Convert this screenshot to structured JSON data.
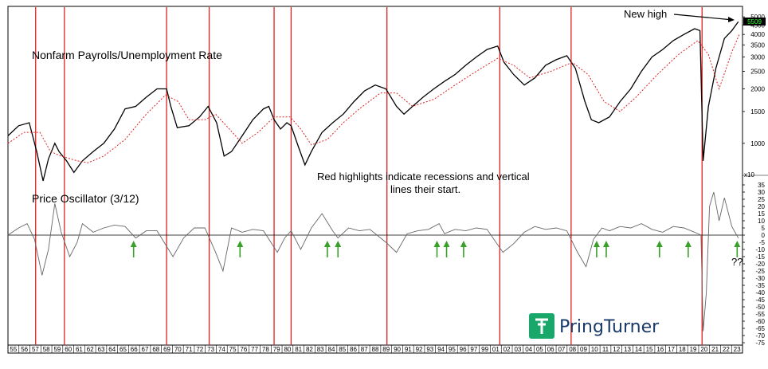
{
  "chart_data": [
    {
      "type": "line",
      "title": "Nonfarm Payrolls/Unemployment Rate",
      "yscale": "log",
      "ylim": [
        700,
        5600
      ],
      "yticks": [
        1000,
        1500,
        2000,
        2500,
        3000,
        3500,
        4000,
        4500,
        5000
      ],
      "current_value_label": "5509",
      "xlim": [
        1955,
        2024
      ],
      "annotation": "New high",
      "series": [
        {
          "color": "#000000",
          "style": "solid",
          "points": [
            [
              1955,
              1100
            ],
            [
              1956,
              1250
            ],
            [
              1957,
              1300
            ],
            [
              1957.7,
              900
            ],
            [
              1958.3,
              620
            ],
            [
              1958.8,
              820
            ],
            [
              1959.4,
              1000
            ],
            [
              1959.8,
              900
            ],
            [
              1960.5,
              800
            ],
            [
              1961.2,
              690
            ],
            [
              1962,
              800
            ],
            [
              1963,
              900
            ],
            [
              1964,
              1000
            ],
            [
              1965,
              1200
            ],
            [
              1966,
              1550
            ],
            [
              1967,
              1600
            ],
            [
              1968,
              1800
            ],
            [
              1969,
              2000
            ],
            [
              1969.9,
              2000
            ],
            [
              1970.3,
              1600
            ],
            [
              1970.9,
              1220
            ],
            [
              1972,
              1250
            ],
            [
              1973,
              1400
            ],
            [
              1973.8,
              1600
            ],
            [
              1974.6,
              1300
            ],
            [
              1975.3,
              850
            ],
            [
              1976,
              900
            ],
            [
              1977,
              1100
            ],
            [
              1978,
              1350
            ],
            [
              1979,
              1550
            ],
            [
              1979.5,
              1600
            ],
            [
              1980,
              1350
            ],
            [
              1980.6,
              1200
            ],
            [
              1981.2,
              1300
            ],
            [
              1981.6,
              1250
            ],
            [
              1982.3,
              950
            ],
            [
              1982.9,
              760
            ],
            [
              1983.5,
              900
            ],
            [
              1984.5,
              1150
            ],
            [
              1985.5,
              1300
            ],
            [
              1986.5,
              1450
            ],
            [
              1987.5,
              1700
            ],
            [
              1988.5,
              1950
            ],
            [
              1989.5,
              2100
            ],
            [
              1990.5,
              2000
            ],
            [
              1991.5,
              1600
            ],
            [
              1992.2,
              1450
            ],
            [
              1993,
              1600
            ],
            [
              1994,
              1800
            ],
            [
              1995,
              2000
            ],
            [
              1996,
              2200
            ],
            [
              1997,
              2400
            ],
            [
              1998,
              2700
            ],
            [
              1999,
              3000
            ],
            [
              2000,
              3300
            ],
            [
              2001,
              3450
            ],
            [
              2001.6,
              2800
            ],
            [
              2002.5,
              2400
            ],
            [
              2003.5,
              2100
            ],
            [
              2004.5,
              2300
            ],
            [
              2005.5,
              2700
            ],
            [
              2006.5,
              2900
            ],
            [
              2007.5,
              3050
            ],
            [
              2008.3,
              2600
            ],
            [
              2009.2,
              1700
            ],
            [
              2009.8,
              1350
            ],
            [
              2010.5,
              1300
            ],
            [
              2011.5,
              1400
            ],
            [
              2012.5,
              1700
            ],
            [
              2013.5,
              2000
            ],
            [
              2014.5,
              2500
            ],
            [
              2015.5,
              3000
            ],
            [
              2016.5,
              3300
            ],
            [
              2017.5,
              3700
            ],
            [
              2018.5,
              4000
            ],
            [
              2019.5,
              4300
            ],
            [
              2020,
              4200
            ],
            [
              2020.3,
              800
            ],
            [
              2020.8,
              1600
            ],
            [
              2021.5,
              2600
            ],
            [
              2022.3,
              3800
            ],
            [
              2023,
              4200
            ],
            [
              2023.6,
              4700
            ]
          ]
        },
        {
          "color": "#dd2222",
          "style": "dotted",
          "points": [
            [
              1955,
              1000
            ],
            [
              1956.5,
              1150
            ],
            [
              1958,
              1150
            ],
            [
              1959,
              900
            ],
            [
              1960,
              850
            ],
            [
              1961.5,
              800
            ],
            [
              1962.5,
              780
            ],
            [
              1964,
              850
            ],
            [
              1966,
              1050
            ],
            [
              1968,
              1450
            ],
            [
              1969.8,
              1850
            ],
            [
              1971,
              1700
            ],
            [
              1972,
              1350
            ],
            [
              1973.5,
              1350
            ],
            [
              1974.5,
              1450
            ],
            [
              1975.8,
              1200
            ],
            [
              1977,
              1000
            ],
            [
              1978.5,
              1150
            ],
            [
              1980,
              1400
            ],
            [
              1981.5,
              1400
            ],
            [
              1982.5,
              1200
            ],
            [
              1983.5,
              980
            ],
            [
              1985,
              1050
            ],
            [
              1986.5,
              1300
            ],
            [
              1988,
              1550
            ],
            [
              1990,
              1900
            ],
            [
              1991.5,
              1900
            ],
            [
              1993,
              1600
            ],
            [
              1995,
              1750
            ],
            [
              1997,
              2100
            ],
            [
              1999,
              2500
            ],
            [
              2001,
              2950
            ],
            [
              2002.5,
              2700
            ],
            [
              2004,
              2300
            ],
            [
              2006,
              2500
            ],
            [
              2008,
              2800
            ],
            [
              2009.5,
              2400
            ],
            [
              2011,
              1700
            ],
            [
              2012.5,
              1500
            ],
            [
              2014,
              1800
            ],
            [
              2016,
              2400
            ],
            [
              2018,
              3100
            ],
            [
              2019.8,
              3700
            ],
            [
              2020.8,
              3100
            ],
            [
              2021.8,
              2000
            ],
            [
              2023,
              3200
            ],
            [
              2023.7,
              4000
            ]
          ]
        }
      ]
    },
    {
      "type": "line",
      "title": "Price Oscillator (3/12)",
      "ylim": [
        -75,
        35
      ],
      "yticks": [
        35,
        30,
        25,
        20,
        15,
        10,
        5,
        0,
        -5,
        -10,
        -15,
        -20,
        -25,
        -30,
        -35,
        -40,
        -45,
        -50,
        -55,
        -60,
        -65,
        -70,
        -75
      ],
      "scale_note": "x10",
      "xlim": [
        1955,
        2024
      ],
      "series": [
        {
          "color": "#666666",
          "style": "solid",
          "points": [
            [
              1955,
              0
            ],
            [
              1956,
              5
            ],
            [
              1956.8,
              8
            ],
            [
              1957.5,
              -3
            ],
            [
              1958.2,
              -28
            ],
            [
              1958.8,
              -10
            ],
            [
              1959.4,
              22
            ],
            [
              1960,
              2
            ],
            [
              1960.8,
              -15
            ],
            [
              1961.5,
              -5
            ],
            [
              1962,
              8
            ],
            [
              1963,
              2
            ],
            [
              1964,
              5
            ],
            [
              1965,
              7
            ],
            [
              1966,
              6
            ],
            [
              1967,
              -2
            ],
            [
              1968,
              3
            ],
            [
              1969,
              3
            ],
            [
              1970.5,
              -15
            ],
            [
              1971.5,
              -2
            ],
            [
              1972.5,
              5
            ],
            [
              1973.5,
              5
            ],
            [
              1974.5,
              -12
            ],
            [
              1975.2,
              -25
            ],
            [
              1976,
              5
            ],
            [
              1977,
              2
            ],
            [
              1978,
              4
            ],
            [
              1979,
              3
            ],
            [
              1980.3,
              -12
            ],
            [
              1981,
              -2
            ],
            [
              1981.6,
              3
            ],
            [
              1982.5,
              -10
            ],
            [
              1983.5,
              5
            ],
            [
              1984.5,
              15
            ],
            [
              1985.5,
              3
            ],
            [
              1986,
              -2
            ],
            [
              1987,
              5
            ],
            [
              1988,
              3
            ],
            [
              1989,
              4
            ],
            [
              1990.5,
              -5
            ],
            [
              1991.5,
              -12
            ],
            [
              1992.5,
              1
            ],
            [
              1993.5,
              3
            ],
            [
              1994.5,
              4
            ],
            [
              1995.5,
              8
            ],
            [
              1996,
              1
            ],
            [
              1997,
              4
            ],
            [
              1998,
              3
            ],
            [
              1999,
              5
            ],
            [
              2000,
              4
            ],
            [
              2001.5,
              -12
            ],
            [
              2002.5,
              -6
            ],
            [
              2003.5,
              2
            ],
            [
              2004.5,
              6
            ],
            [
              2005.5,
              4
            ],
            [
              2006.5,
              5
            ],
            [
              2007.5,
              3
            ],
            [
              2008.5,
              -12
            ],
            [
              2009.3,
              -22
            ],
            [
              2010,
              -3
            ],
            [
              2010.8,
              5
            ],
            [
              2011.5,
              3
            ],
            [
              2012.5,
              6
            ],
            [
              2013.5,
              5
            ],
            [
              2014.5,
              8
            ],
            [
              2015.5,
              4
            ],
            [
              2016.5,
              2
            ],
            [
              2017.5,
              6
            ],
            [
              2018.5,
              5
            ],
            [
              2019.5,
              2
            ],
            [
              2020.1,
              0
            ],
            [
              2020.3,
              -67
            ],
            [
              2020.6,
              -40
            ],
            [
              2020.9,
              20
            ],
            [
              2021.3,
              30
            ],
            [
              2021.8,
              10
            ],
            [
              2022.3,
              26
            ],
            [
              2023,
              6
            ],
            [
              2023.6,
              -2
            ]
          ]
        }
      ],
      "zero_line": true,
      "arrows_at": [
        1966.8,
        1976.8,
        1985.0,
        1986.0,
        1995.3,
        1996.2,
        1997.8,
        2010.3,
        2011.2,
        2016.2,
        2018.9,
        2023.5
      ],
      "annotation": "??"
    }
  ],
  "recession_starts": [
    1957.6,
    1960.3,
    1969.9,
    1973.9,
    1980.0,
    1981.6,
    1990.6,
    2001.2,
    2007.9,
    2020.2
  ],
  "overlay_text": {
    "line1": "Red highlights indicate recessions and vertical",
    "line2": "lines their start."
  },
  "x_axis_labels": [
    "55",
    "56",
    "57",
    "58",
    "59",
    "60",
    "61",
    "62",
    "63",
    "64",
    "65",
    "66",
    "67",
    "68",
    "69",
    "70",
    "71",
    "72",
    "73",
    "74",
    "75",
    "76",
    "77",
    "78",
    "79",
    "80",
    "81",
    "82",
    "83",
    "84",
    "85",
    "86",
    "87",
    "88",
    "89",
    "90",
    "91",
    "92",
    "93",
    "94",
    "95",
    "96",
    "97",
    "99",
    "01",
    "02",
    "03",
    "04",
    "05",
    "06",
    "07",
    "08",
    "09",
    "10",
    "11",
    "12",
    "13",
    "14",
    "15",
    "16",
    "17",
    "18",
    "19",
    "20",
    "21",
    "22",
    "23"
  ],
  "logo": {
    "text": "PringTurner",
    "color": "#1aa86a"
  }
}
